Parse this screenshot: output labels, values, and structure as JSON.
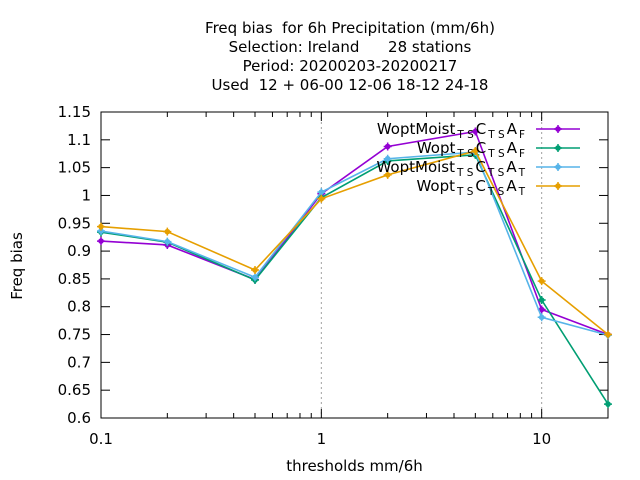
{
  "chart_data": {
    "type": "line",
    "title_lines": [
      "Freq bias  for 6h Precipitation (mm/6h)",
      "Selection: Ireland      28 stations",
      "Period: 20200203-20200217",
      "Used  12 + 06-00 12-06 18-12 24-18"
    ],
    "xlabel": "thresholds mm/6h",
    "ylabel": "Freq bias",
    "xscale": "log",
    "xlim": [
      0.1,
      20
    ],
    "ylim": [
      0.6,
      1.15
    ],
    "x_ticks": [
      0.1,
      1,
      10
    ],
    "x_tick_labels": [
      "0.1",
      "1",
      "10"
    ],
    "y_ticks": [
      0.6,
      0.65,
      0.7,
      0.75,
      0.8,
      0.85,
      0.9,
      0.95,
      1,
      1.05,
      1.1,
      1.15
    ],
    "y_tick_labels": [
      "0.6",
      "0.65",
      "0.7",
      "0.75",
      "0.8",
      "0.85",
      "0.9",
      "0.95",
      "1",
      "1.05",
      "1.1",
      "1.15"
    ],
    "grid": "vertical-dashed-at-decades",
    "legend_position": "top-right",
    "x": [
      0.1,
      0.2,
      0.5,
      1,
      2,
      5,
      10,
      20
    ],
    "series": [
      {
        "name": {
          "a": "WoptMoist",
          "s1": "T S",
          "b": "C",
          "s2": "T S",
          "c": "A",
          "s3": "F"
        },
        "color": "#9400d3",
        "values": [
          0.918,
          0.911,
          0.849,
          1.003,
          1.088,
          1.115,
          0.795,
          0.75
        ]
      },
      {
        "name": {
          "a": "Wopt",
          "s1": "T S",
          "b": "C",
          "s2": "T S",
          "c": "A",
          "s3": "F"
        },
        "color": "#009e73",
        "values": [
          0.934,
          0.916,
          0.848,
          0.996,
          1.062,
          1.073,
          0.812,
          0.625
        ]
      },
      {
        "name": {
          "a": "WoptMoist",
          "s1": "T S",
          "b": "C",
          "s2": "T S",
          "c": "A",
          "s3": "T"
        },
        "color": "#56b4e9",
        "values": [
          0.936,
          0.917,
          0.853,
          1.006,
          1.066,
          1.078,
          0.781,
          0.749
        ]
      },
      {
        "name": {
          "a": "Wopt",
          "s1": "T S",
          "b": "C",
          "s2": "T S",
          "c": "A",
          "s3": "T"
        },
        "color": "#e69f00",
        "values": [
          0.944,
          0.935,
          0.866,
          0.994,
          1.037,
          1.08,
          0.846,
          0.75
        ]
      }
    ]
  }
}
